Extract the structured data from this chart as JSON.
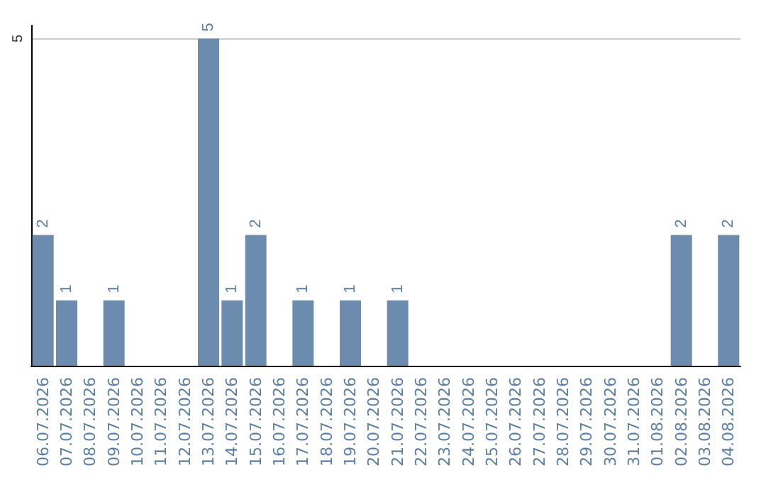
{
  "chart_data": {
    "type": "bar",
    "categories": [
      "06.07.2026",
      "07.07.2026",
      "08.07.2026",
      "09.07.2026",
      "10.07.2026",
      "11.07.2026",
      "12.07.2026",
      "13.07.2026",
      "14.07.2026",
      "15.07.2026",
      "16.07.2026",
      "17.07.2026",
      "18.07.2026",
      "19.07.2026",
      "20.07.2026",
      "21.07.2026",
      "22.07.2026",
      "23.07.2026",
      "24.07.2026",
      "25.07.2026",
      "26.07.2026",
      "27.07.2026",
      "28.07.2026",
      "29.07.2026",
      "30.07.2026",
      "31.07.2026",
      "01.08.2026",
      "02.08.2026",
      "03.08.2026",
      "04.08.2026"
    ],
    "values": [
      2,
      1,
      0,
      1,
      0,
      0,
      0,
      5,
      1,
      2,
      0,
      1,
      0,
      1,
      0,
      1,
      0,
      0,
      0,
      0,
      0,
      0,
      0,
      0,
      0,
      0,
      0,
      2,
      0,
      2
    ],
    "value_labels": [
      "2",
      "1",
      null,
      "1",
      null,
      null,
      null,
      "5",
      "1",
      "2",
      null,
      "1",
      null,
      "1",
      null,
      "1",
      null,
      null,
      null,
      null,
      null,
      null,
      null,
      null,
      null,
      null,
      null,
      "2",
      null,
      "2"
    ],
    "color": "#6b8cae",
    "ylim": [
      0,
      5.2
    ],
    "yticks": [
      5
    ],
    "grid": "y"
  }
}
